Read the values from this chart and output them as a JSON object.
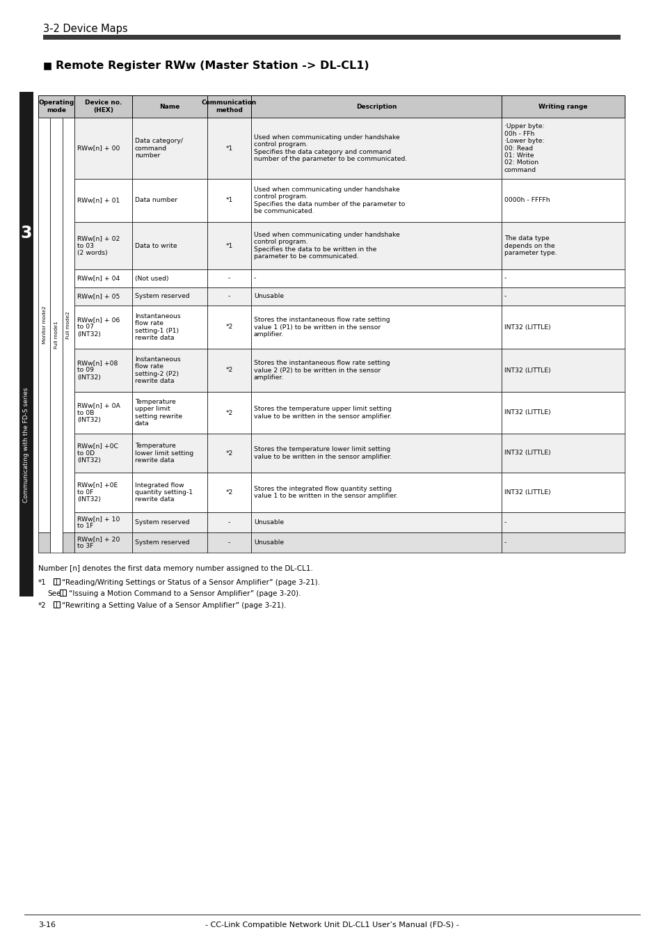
{
  "page_title": "3-2 Device Maps",
  "section_title": "Remote Register RWw (Master Station -> DL-CL1)",
  "rows": [
    {
      "device": "RWw[n] + 00",
      "name": "Data category/\ncommand\nnumber",
      "comm": "*1",
      "desc": "Used when communicating under handshake\ncontrol program.\nSpecifies the data category and command\nnumber of the parameter to be communicated.",
      "writing": "·Upper byte:\n00h - FFh\n·Lower byte:\n00: Read\n01: Write\n02: Motion\ncommand",
      "op_all": true,
      "bg": "#f0f0f0"
    },
    {
      "device": "RWw[n] + 01",
      "name": "Data number",
      "comm": "*1",
      "desc": "Used when communicating under handshake\ncontrol program.\nSpecifies the data number of the parameter to\nbe communicated.",
      "writing": "0000h - FFFFh",
      "op_all": true,
      "bg": "#ffffff"
    },
    {
      "device": "RWw[n] + 02\nto 03\n(2 words)",
      "name": "Data to write",
      "comm": "*1",
      "desc": "Used when communicating under handshake\ncontrol program.\nSpecifies the data to be written in the\nparameter to be communicated.",
      "writing": "The data type\ndepends on the\nparameter type.",
      "op_all": true,
      "bg": "#f0f0f0"
    },
    {
      "device": "RWw[n] + 04",
      "name": "(Not used)",
      "comm": "-",
      "desc": "-",
      "writing": "-",
      "op_all": true,
      "bg": "#ffffff"
    },
    {
      "device": "RWw[n] + 05",
      "name": "System reserved",
      "comm": "-",
      "desc": "Unusable",
      "writing": "-",
      "op_all": true,
      "bg": "#f0f0f0"
    },
    {
      "device": "RWw[n] + 06\nto 07\n(INT32)",
      "name": "Instantaneous\nflow rate\nsetting-1 (P1)\nrewrite data",
      "comm": "*2",
      "desc": "Stores the instantaneous flow rate setting\nvalue 1 (P1) to be written in the sensor\namplifier.",
      "writing": "INT32 (LITTLE)",
      "op_all": true,
      "bg": "#ffffff"
    },
    {
      "device": "RWw[n] +08\nto 09\n(INT32)",
      "name": "Instantaneous\nflow rate\nsetting-2 (P2)\nrewrite data",
      "comm": "*2",
      "desc": "Stores the instantaneous flow rate setting\nvalue 2 (P2) to be written in the sensor\namplifier.",
      "writing": "INT32 (LITTLE)",
      "op_all": true,
      "bg": "#f0f0f0"
    },
    {
      "device": "RWw[n] + 0A\nto 0B\n(INT32)",
      "name": "Temperature\nupper limit\nsetting rewrite\ndata",
      "comm": "*2",
      "desc": "Stores the temperature upper limit setting\nvalue to be written in the sensor amplifier.",
      "writing": "INT32 (LITTLE)",
      "op_all": true,
      "bg": "#ffffff"
    },
    {
      "device": "RWw[n] +0C\nto 0D\n(INT32)",
      "name": "Temperature\nlower limit setting\nrewrite data",
      "comm": "*2",
      "desc": "Stores the temperature lower limit setting\nvalue to be written in the sensor amplifier.",
      "writing": "INT32 (LITTLE)",
      "op_all": true,
      "bg": "#f0f0f0"
    },
    {
      "device": "RWw[n] +0E\nto 0F\n(INT32)",
      "name": "Integrated flow\nquantity setting-1\nrewrite data",
      "comm": "*2",
      "desc": "Stores the integrated flow quantity setting\nvalue 1 to be written in the sensor amplifier.",
      "writing": "INT32 (LITTLE)",
      "op_all": true,
      "bg": "#ffffff"
    },
    {
      "device": "RWw[n] + 10\nto 1F",
      "name": "System reserved",
      "comm": "-",
      "desc": "Unusable",
      "writing": "-",
      "op_all": true,
      "bg": "#f0f0f0"
    },
    {
      "device": "RWw[n] + 20\nto 3F",
      "name": "System reserved",
      "comm": "-",
      "desc": "Unusable",
      "writing": "-",
      "op_all": false,
      "bg": "#e0e0e0"
    }
  ],
  "footer_notes": [
    "Number [n] denotes the first data memory number assigned to the DL-CL1.",
    "*1   See     “Reading/Writing Settings or Status of a Sensor Amplifier” (page 3-21).",
    "      See     “Issuing a Motion Command to a Sensor Amplifier” (page 3-20).",
    "*2   See     “Rewriting a Setting Value of a Sensor Amplifier” (page 3-21)."
  ],
  "page_footer": "3-16          - CC-Link Compatible Network Unit DL-CL1 User’s Manual (FD-S) -",
  "sidebar_text": "Communicating with the FD-S series",
  "sidebar_number": "3",
  "bg_color": "#ffffff",
  "header_bg": "#c8c8c8",
  "title_bar_color": "#3a3a3a"
}
